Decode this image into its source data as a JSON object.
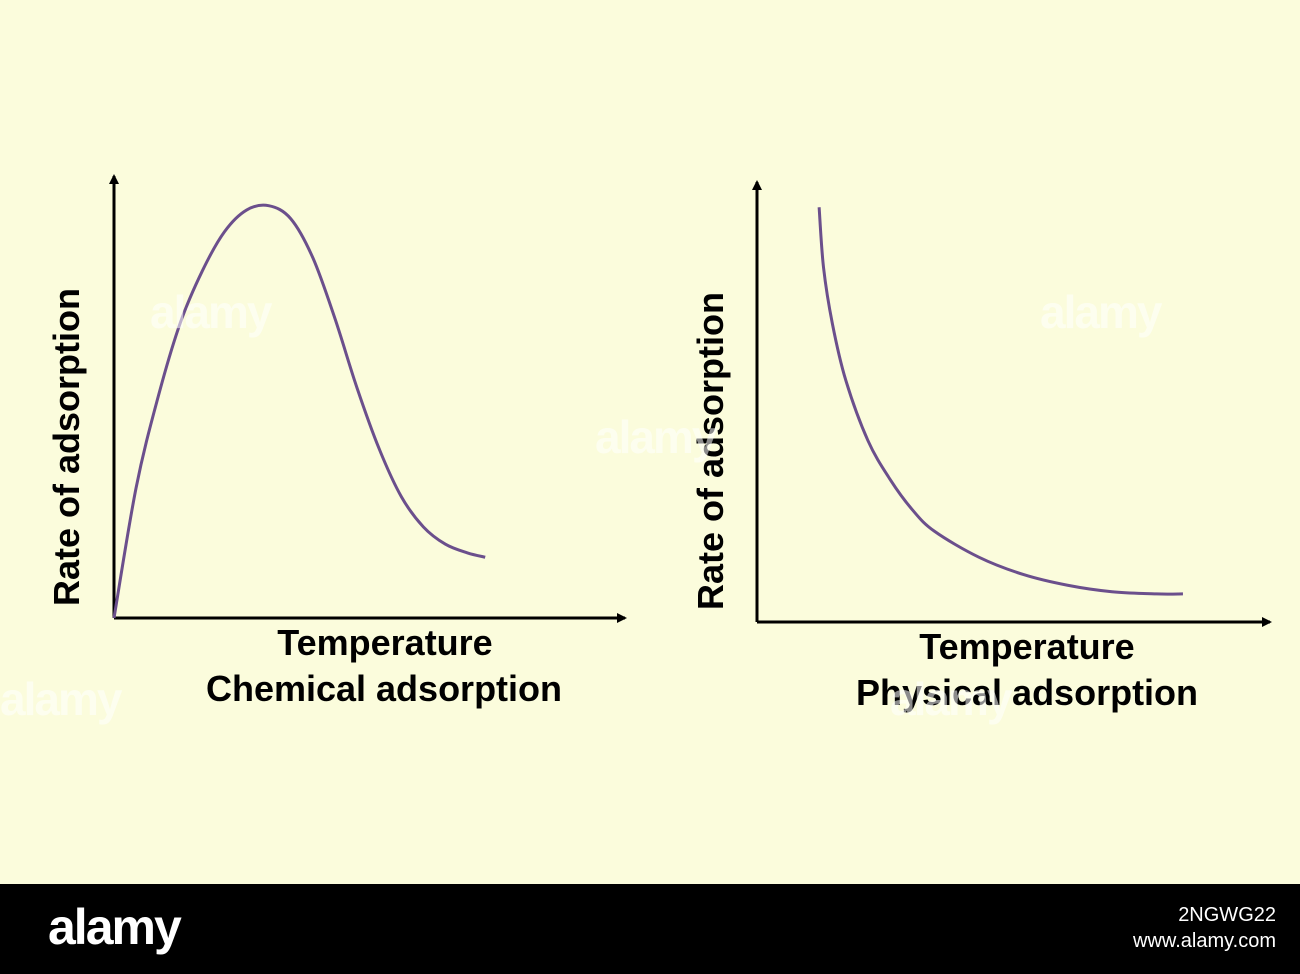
{
  "colors": {
    "background": "#fbfcdc",
    "curve": "#6b4f8c",
    "axis": "#000000",
    "footer": "#000000"
  },
  "watermark": "alamy",
  "chart_data": [
    {
      "type": "line",
      "title": "Chemical adsorption",
      "xlabel": "Temperature",
      "ylabel": "Rate of adsorption",
      "xlim": [
        0,
        10
      ],
      "ylim": [
        0,
        10
      ],
      "grid": false,
      "series": [
        {
          "x": [
            0,
            0.5,
            1,
            1.5,
            2,
            2.5,
            3,
            3.5,
            4,
            4.5,
            5,
            5.5,
            6,
            6.5,
            7,
            7.5,
            8,
            8.4
          ],
          "y": [
            0,
            3.0,
            5.1,
            6.8,
            8.0,
            8.9,
            9.4,
            9.5,
            9.2,
            8.3,
            6.9,
            5.3,
            3.9,
            2.8,
            2.1,
            1.7,
            1.5,
            1.4
          ]
        }
      ]
    },
    {
      "type": "line",
      "title": "Physical adsorption",
      "xlabel": "Temperature",
      "ylabel": "Rate of adsorption",
      "xlim": [
        0,
        10
      ],
      "ylim": [
        0,
        10
      ],
      "grid": false,
      "series": [
        {
          "x": [
            1.4,
            1.5,
            1.7,
            2,
            2.5,
            3,
            3.5,
            4,
            5,
            6,
            7,
            8,
            9,
            9.6
          ],
          "y": [
            9.6,
            8.2,
            6.9,
            5.6,
            4.2,
            3.3,
            2.6,
            2.1,
            1.5,
            1.1,
            0.85,
            0.7,
            0.65,
            0.65
          ]
        }
      ]
    }
  ],
  "footer": {
    "brand": "alamy",
    "image_id": "2NGWG22",
    "site": "www.alamy.com"
  }
}
